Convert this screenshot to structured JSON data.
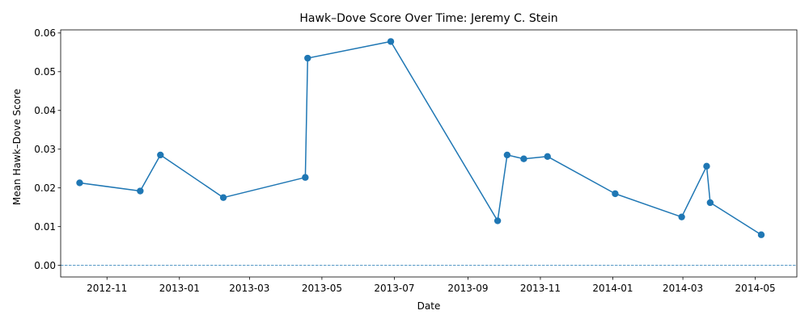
{
  "chart_data": {
    "type": "line",
    "title": "Hawk–Dove Score Over Time: Jeremy C. Stein",
    "xlabel": "Date",
    "ylabel": "Mean Hawk–Dove Score",
    "x_tick_labels": [
      "2012-11",
      "2013-01",
      "2013-03",
      "2013-05",
      "2013-07",
      "2013-09",
      "2013-11",
      "2014-01",
      "2014-03",
      "2014-05"
    ],
    "x_tick_dates": [
      "2012-11-01",
      "2013-01-01",
      "2013-03-01",
      "2013-05-01",
      "2013-07-01",
      "2013-09-01",
      "2013-11-01",
      "2014-01-01",
      "2014-03-01",
      "2014-05-01"
    ],
    "y_tick_labels": [
      "0.00",
      "0.01",
      "0.02",
      "0.03",
      "0.04",
      "0.05",
      "0.06"
    ],
    "y_ticks": [
      0,
      0.01,
      0.02,
      0.03,
      0.04,
      0.05,
      0.06
    ],
    "xlim": [
      "2012-09-23",
      "2014-06-05"
    ],
    "ylim": [
      -0.003,
      0.0608
    ],
    "reference_line": {
      "y": 0,
      "style": "dashed"
    },
    "grid": false,
    "colors": {
      "line": "#1f77b4",
      "marker": "#1f77b4",
      "axis": "#000000"
    },
    "series": [
      {
        "name": "Jeremy C. Stein",
        "x": [
          "2012-10-09",
          "2012-11-29",
          "2012-12-16",
          "2013-02-07",
          "2013-04-17",
          "2013-04-19",
          "2013-06-28",
          "2013-09-26",
          "2013-10-04",
          "2013-10-18",
          "2013-11-07",
          "2014-01-03",
          "2014-02-28",
          "2014-03-21",
          "2014-03-24",
          "2014-05-06"
        ],
        "values": [
          0.0213,
          0.0192,
          0.0285,
          0.0175,
          0.0227,
          0.0535,
          0.0578,
          0.0115,
          0.0285,
          0.0275,
          0.0281,
          0.0185,
          0.0125,
          0.0256,
          0.0162,
          0.0079
        ]
      }
    ]
  }
}
